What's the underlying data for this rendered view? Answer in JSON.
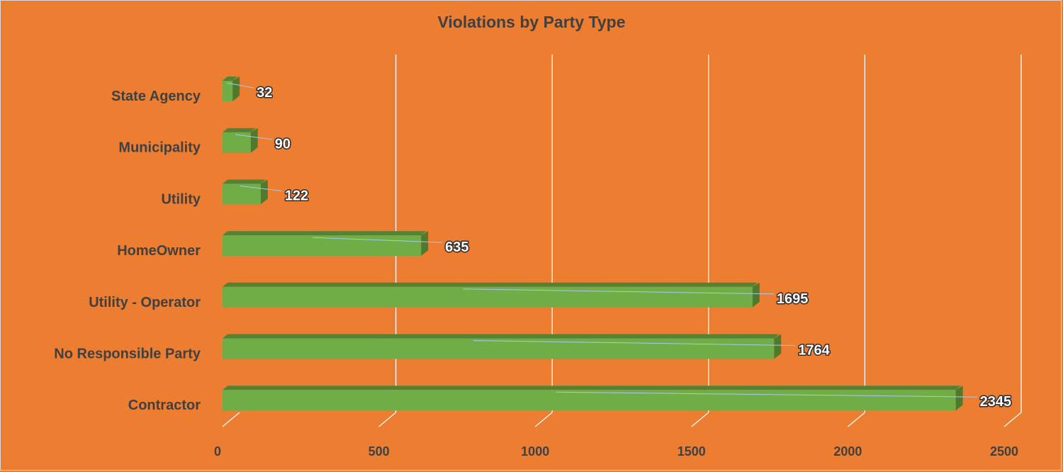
{
  "chart_data": {
    "type": "bar",
    "orientation": "horizontal",
    "title": "Violations by Party Type",
    "categories": [
      "State Agency",
      "Municipality",
      "Utility",
      "HomeOwner",
      "Utility - Operator",
      "No Responsible Party",
      "Contractor"
    ],
    "values": [
      32,
      90,
      122,
      635,
      1695,
      1764,
      2345
    ],
    "xlim": [
      0,
      2500
    ],
    "x_ticks": [
      "0",
      "500",
      "1000",
      "1500",
      "2000",
      "2500"
    ],
    "grid": "vertical",
    "data_labels": true,
    "style": "3d-bar"
  },
  "colors": {
    "background": "#ED7D31",
    "bar_front": "#70AD47",
    "bar_top": "#548235",
    "bar_side": "#4E7A2E",
    "gridline": "#ffffff",
    "text": "#404040",
    "label_fill": "#ffffff"
  }
}
